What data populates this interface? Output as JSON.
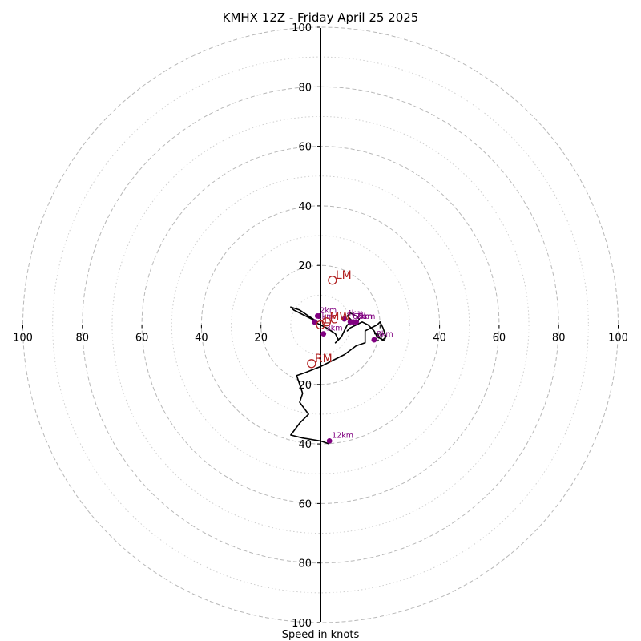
{
  "chart_data": {
    "type": "scatter",
    "subtype": "hodograph",
    "title": "KMHX 12Z - Friday April 25 2025",
    "xlabel": "Speed in knots",
    "xlim": [
      -100,
      100
    ],
    "ylim": [
      -100,
      100
    ],
    "ring_major": [
      20,
      40,
      60,
      80,
      100
    ],
    "ring_minor": [
      10,
      30,
      50,
      70,
      90
    ],
    "tick_values": [
      20,
      40,
      60,
      80,
      100
    ],
    "tick_labels": [
      "20",
      "40",
      "60",
      "80",
      "100"
    ],
    "grid": true,
    "colors": {
      "trace": "#000000",
      "points": "#800080",
      "motion": "#b22222",
      "grid": "#b8b8b8"
    },
    "trace": [
      [
        -1,
        1
      ],
      [
        -4,
        3
      ],
      [
        -7,
        5
      ],
      [
        -10,
        6
      ],
      [
        -9,
        5
      ],
      [
        -7,
        4
      ],
      [
        -5,
        3
      ],
      [
        -3,
        2
      ],
      [
        -2,
        1
      ],
      [
        0,
        0
      ],
      [
        2,
        -1
      ],
      [
        5,
        -3
      ],
      [
        6,
        -5
      ],
      [
        5,
        -6
      ],
      [
        7,
        -4
      ],
      [
        8,
        -2
      ],
      [
        9,
        0
      ],
      [
        11,
        1
      ],
      [
        10,
        2
      ],
      [
        9,
        3
      ],
      [
        10,
        4
      ],
      [
        12,
        3
      ],
      [
        13,
        2
      ],
      [
        12,
        0
      ],
      [
        10,
        -1
      ],
      [
        9,
        -2
      ],
      [
        10,
        -1
      ],
      [
        12,
        0
      ],
      [
        14,
        1
      ],
      [
        16,
        0
      ],
      [
        18,
        -2
      ],
      [
        19,
        -4
      ],
      [
        21,
        -5
      ],
      [
        22,
        -4
      ],
      [
        21,
        -1
      ],
      [
        20,
        1
      ],
      [
        19,
        0
      ],
      [
        17,
        -1
      ],
      [
        15,
        -2
      ],
      [
        15,
        -6
      ],
      [
        12,
        -7
      ],
      [
        8,
        -10
      ],
      [
        0,
        -14
      ],
      [
        -5,
        -16
      ],
      [
        -8,
        -17
      ],
      [
        -7,
        -20
      ],
      [
        -6,
        -23
      ],
      [
        -7,
        -26
      ],
      [
        -4,
        -30
      ],
      [
        -7,
        -33
      ],
      [
        -10,
        -37
      ],
      [
        -6,
        -38
      ],
      [
        0,
        -39
      ],
      [
        3,
        -40
      ]
    ],
    "points": [
      {
        "label": "1km",
        "x": -2,
        "y": 1
      },
      {
        "label": "2km",
        "x": -1,
        "y": 3
      },
      {
        "label": "3km",
        "x": 1,
        "y": -3
      },
      {
        "label": "4km",
        "x": 8,
        "y": 2
      },
      {
        "label": "5km",
        "x": 12,
        "y": 1
      },
      {
        "label": "6km",
        "x": 10,
        "y": 1
      },
      {
        "label": "7km",
        "x": 11,
        "y": 1
      },
      {
        "label": "8km",
        "x": 18,
        "y": -5
      },
      {
        "label": "12km",
        "x": 3,
        "y": -39
      }
    ],
    "markers": [
      {
        "label": "LM",
        "x": 4,
        "y": 15
      },
      {
        "label": "RM",
        "x": -3,
        "y": -13
      },
      {
        "label": "MW",
        "x": 2,
        "y": 1
      },
      {
        "label": "LC",
        "x": 0,
        "y": 0
      }
    ]
  }
}
